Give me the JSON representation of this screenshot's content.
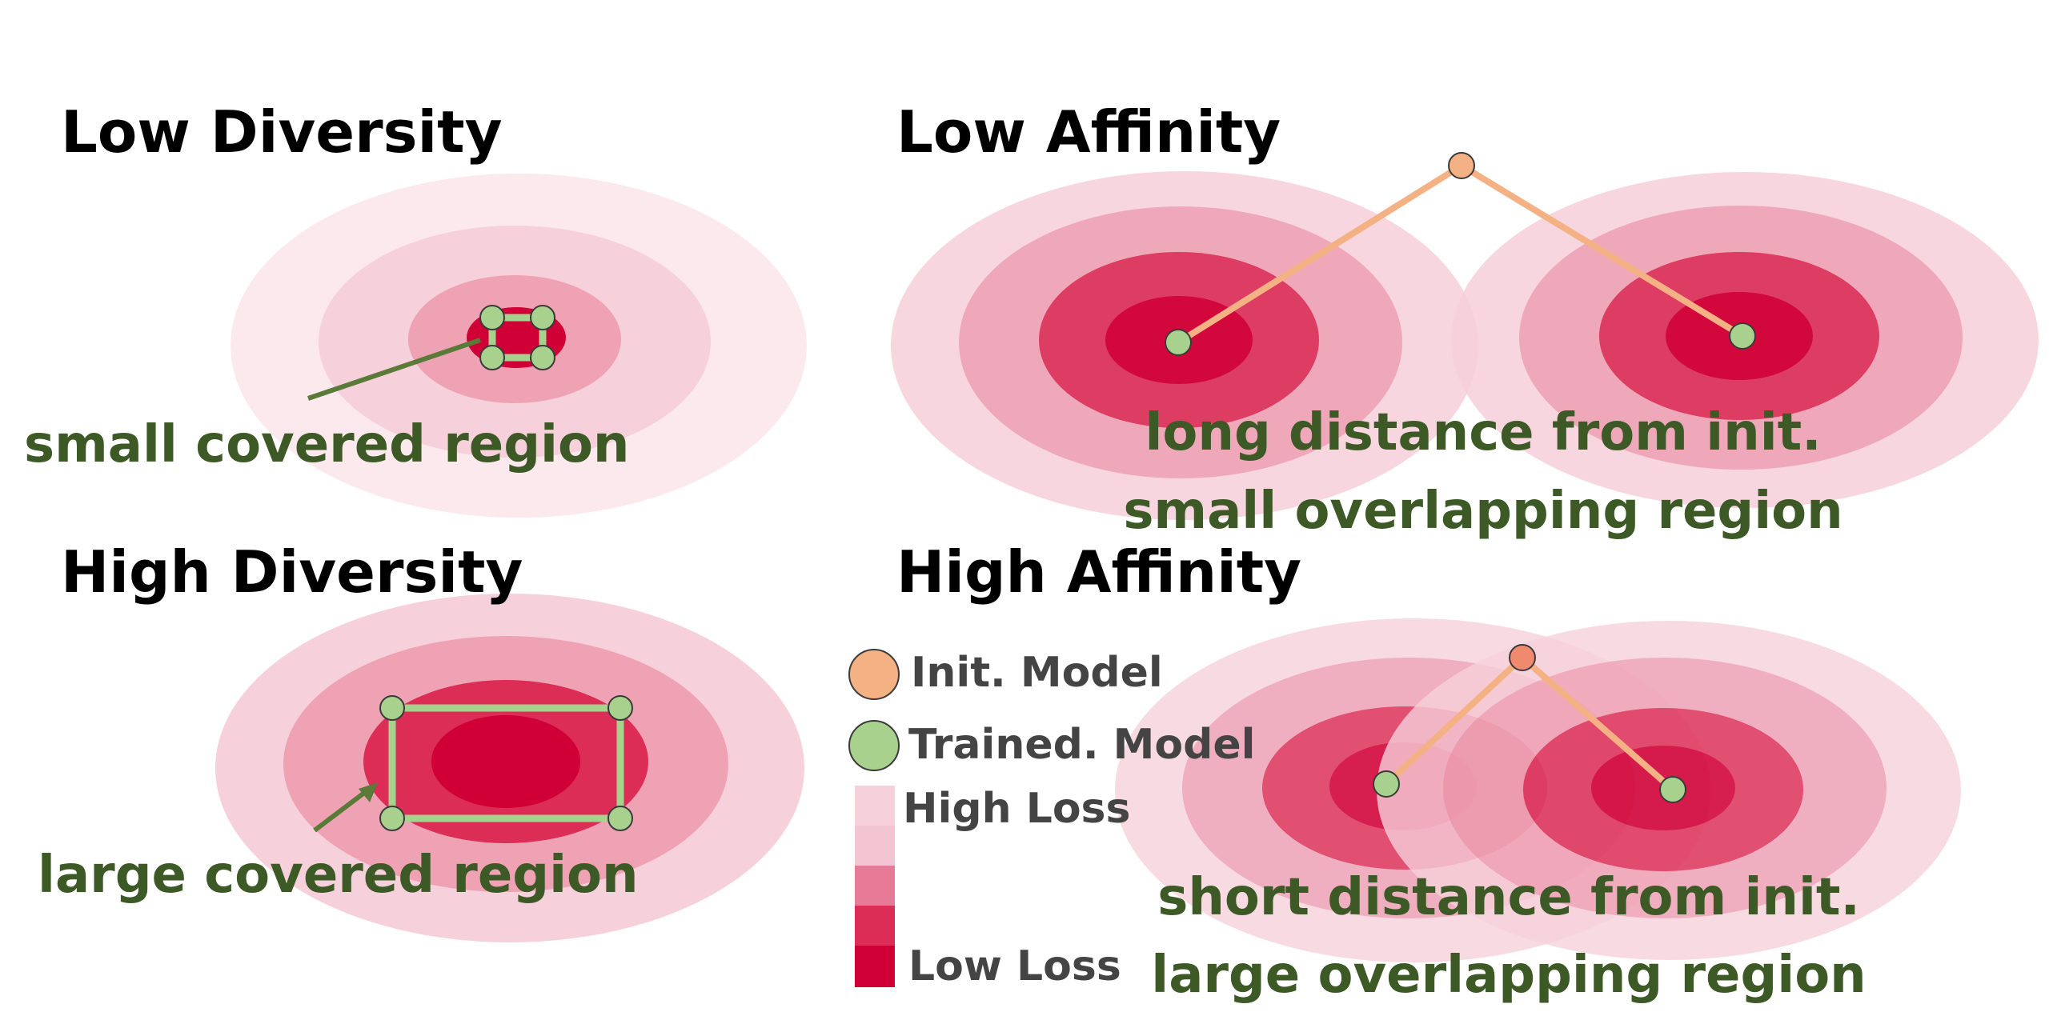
{
  "panels": {
    "low_diversity": {
      "title": "Low Diversity",
      "note": "small covered region"
    },
    "high_diversity": {
      "title": "High Diversity",
      "note": "large covered region"
    },
    "low_affinity": {
      "title": "Low Affinity",
      "note_line1": "long distance from init.",
      "note_line2": "small overlapping region"
    },
    "high_affinity": {
      "title": "High Affinity",
      "note_line1": "short distance from init.",
      "note_line2": "large overlapping region"
    }
  },
  "legend": {
    "init_model": "Init. Model",
    "trained_model": "Trained. Model",
    "high_loss": "High Loss",
    "low_loss": "Low Loss"
  },
  "colors": {
    "loss_levels": [
      "#fbe9ee",
      "#f6d0db",
      "#eea2b4",
      "#dc2d57",
      "#d00036"
    ],
    "init_model": "#f4b183",
    "init_model_small": "#f08a6e",
    "trained_model": "#a9d18e",
    "trained_edge": "#a9d18e",
    "init_edge": "#f4b183",
    "note_text": "#3d5a26",
    "arrow": "#5a7a38"
  }
}
